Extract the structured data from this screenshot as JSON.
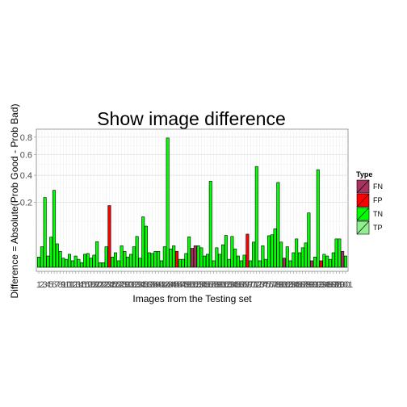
{
  "chart_data": {
    "type": "bar",
    "title": "Show image difference",
    "xlabel": "Images from the Testing set",
    "ylabel": "Difference = Absolute(Prob Good - Prob Bad)",
    "yscale": "sqrt",
    "ylim": [
      0,
      0.88
    ],
    "yticks": [
      0.2,
      0.4,
      0.6,
      0.8
    ],
    "ytick_labels": [
      "0.2",
      "0.4",
      "0.6",
      "0.8"
    ],
    "grid": true,
    "legend": {
      "title": "Type",
      "placement": "right",
      "entries": [
        {
          "name": "FN",
          "color": "#a8335f"
        },
        {
          "name": "FP",
          "color": "#ff0000"
        },
        {
          "name": "TN",
          "color": "#00ff00"
        },
        {
          "name": "TP",
          "color": "#90ee90"
        }
      ]
    },
    "categories": [
      "1",
      "2",
      "3",
      "4",
      "5",
      "6",
      "7",
      "8",
      "9",
      "10",
      "11",
      "12",
      "13",
      "14",
      "15",
      "16",
      "17",
      "18",
      "19",
      "20",
      "21",
      "22",
      "23",
      "24",
      "25",
      "26",
      "27",
      "28",
      "29",
      "30",
      "31",
      "32",
      "33",
      "34",
      "35",
      "36",
      "37",
      "38",
      "39",
      "40",
      "41",
      "42",
      "43",
      "44",
      "45",
      "46",
      "47",
      "48",
      "49",
      "50",
      "51",
      "52",
      "53",
      "54",
      "55",
      "56",
      "57",
      "58",
      "59",
      "60",
      "61",
      "62",
      "63",
      "64",
      "65",
      "66",
      "67",
      "68",
      "69",
      "70",
      "71",
      "72",
      "73",
      "74",
      "75",
      "76",
      "77",
      "78",
      "79",
      "80",
      "81",
      "82",
      "83",
      "84",
      "85",
      "86",
      "87",
      "88",
      "89",
      "90",
      "91",
      "92",
      "93",
      "94",
      "95",
      "96",
      "97",
      "98",
      "99",
      "100",
      "101"
    ],
    "values": [
      0.005,
      0.02,
      0.23,
      0.006,
      0.043,
      0.28,
      0.026,
      0.012,
      0.004,
      0.003,
      0.008,
      0.002,
      0.006,
      0.003,
      0.001,
      0.008,
      0.009,
      0.004,
      0.007,
      0.031,
      0.001,
      0.001,
      0.02,
      0.18,
      0.005,
      0.01,
      0.002,
      0.022,
      0.012,
      0.005,
      0.008,
      0.02,
      0.045,
      0.004,
      0.12,
      0.08,
      0.01,
      0.009,
      0.012,
      0.012,
      0.002,
      0.02,
      0.79,
      0.016,
      0.022,
      0.012,
      0.003,
      0.003,
      0.009,
      0.044,
      0.017,
      0.022,
      0.022,
      0.018,
      0.006,
      0.008,
      0.35,
      0.002,
      0.018,
      0.008,
      0.024,
      0.048,
      0.003,
      0.045,
      0.016,
      0.006,
      0.002,
      0.007,
      0.052,
      0.002,
      0.03,
      0.48,
      0.002,
      0.022,
      0.003,
      0.047,
      0.05,
      0.07,
      0.34,
      0.03,
      0.004,
      0.02,
      0.002,
      0.01,
      0.038,
      0.01,
      0.018,
      0.028,
      0.14,
      0.002,
      0.005,
      0.45,
      0.002,
      0.008,
      0.006,
      0.003,
      0.01,
      0.038,
      0.038,
      0.012,
      0.006
    ],
    "types": [
      "TN",
      "TN",
      "TN",
      "TN",
      "TN",
      "TN",
      "TN",
      "TN",
      "TN",
      "TN",
      "TN",
      "TN",
      "TN",
      "TN",
      "TN",
      "TN",
      "TN",
      "TN",
      "TN",
      "TN",
      "TN",
      "TN",
      "TN",
      "FP",
      "TN",
      "TN",
      "TN",
      "TN",
      "TN",
      "TN",
      "TN",
      "TN",
      "TN",
      "TN",
      "TN",
      "TN",
      "TN",
      "TN",
      "TN",
      "TN",
      "TN",
      "TN",
      "TN",
      "TN",
      "TN",
      "FP",
      "TN",
      "TN",
      "TN",
      "TN",
      "FN",
      "FN",
      "TN",
      "TN",
      "TN",
      "TN",
      "TN",
      "TN",
      "TN",
      "TN",
      "TN",
      "TN",
      "TN",
      "TN",
      "TN",
      "TN",
      "TN",
      "TN",
      "FP",
      "TN",
      "TN",
      "TN",
      "TN",
      "TN",
      "TN",
      "TN",
      "TN",
      "TN",
      "TN",
      "TN",
      "FN",
      "TN",
      "TN",
      "TN",
      "TN",
      "TN",
      "TN",
      "TN",
      "TN",
      "FN",
      "TN",
      "TN",
      "FP",
      "TN",
      "TN",
      "TN",
      "TN",
      "TN",
      "TN",
      "FN",
      "TN"
    ]
  }
}
